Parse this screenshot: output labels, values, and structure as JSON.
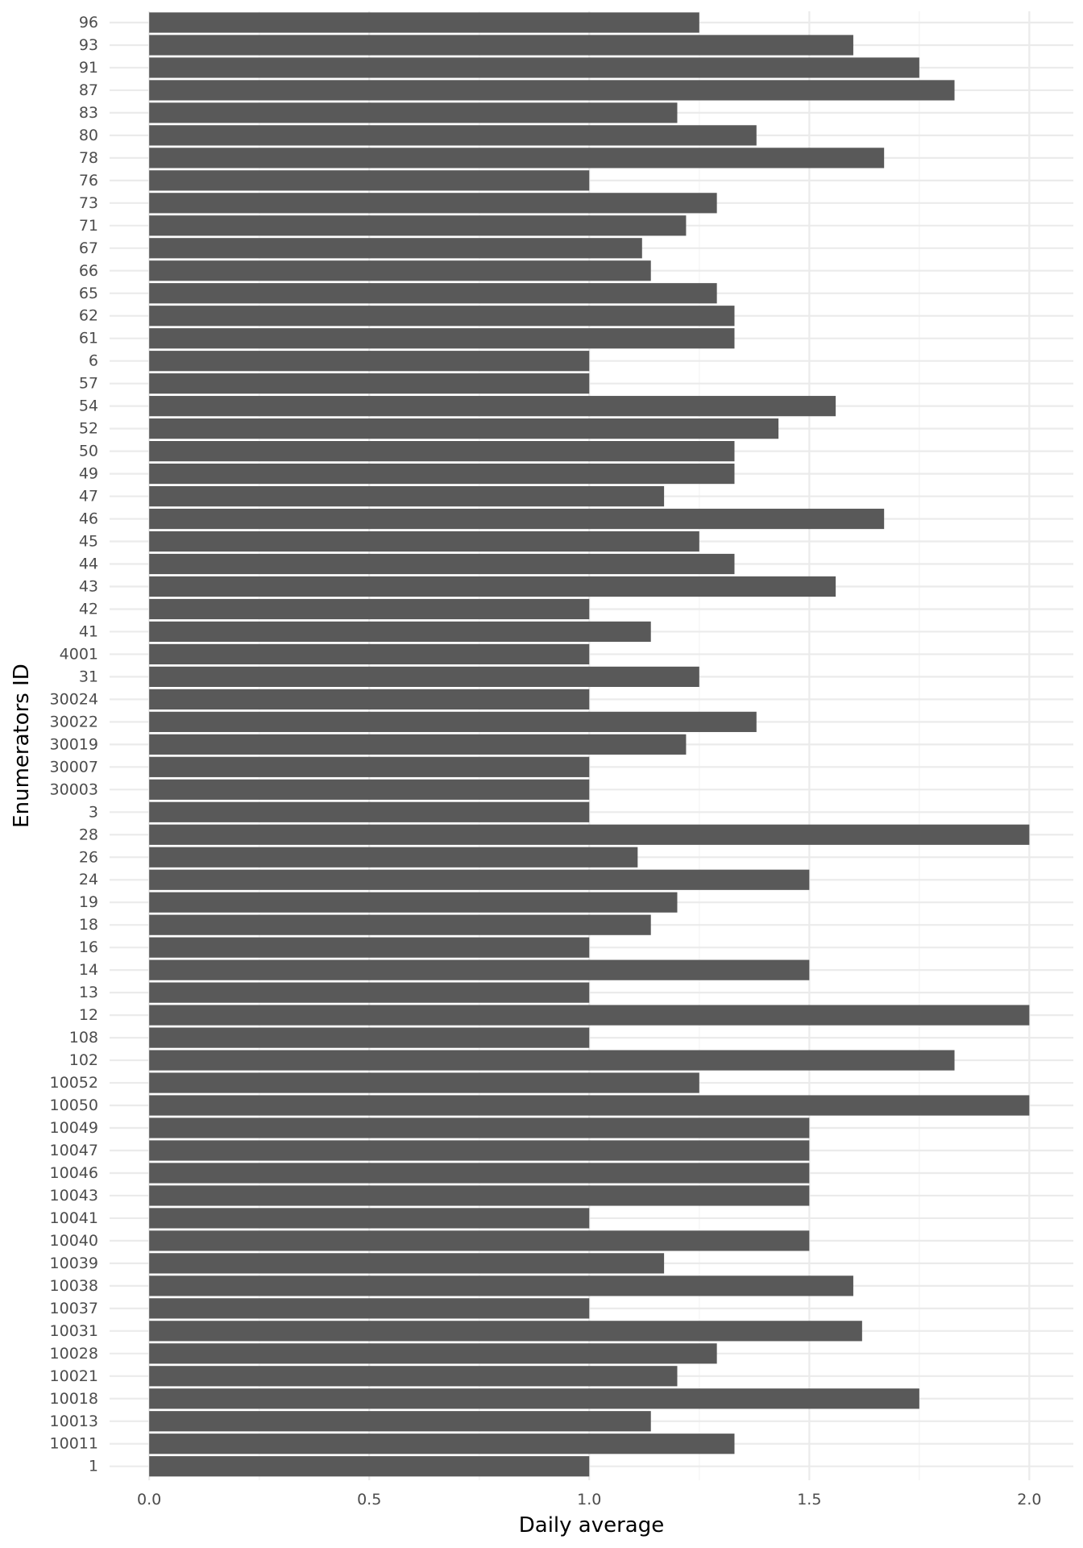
{
  "chart_data": {
    "type": "bar",
    "orientation": "horizontal",
    "xlabel": "Daily average",
    "ylabel": "Enumerators ID",
    "xlim": [
      -0.09,
      2.1
    ],
    "x_ticks": [
      "0.0",
      "0.5",
      "1.0",
      "1.5",
      "2.0"
    ],
    "x_tick_values": [
      0,
      0.5,
      1,
      1.5,
      2
    ],
    "grid": true,
    "legend": "none",
    "colors": {
      "bar": "#595959",
      "grid_major": "#ebebeb",
      "grid_minor": "#f5f5f5"
    },
    "categories": [
      "96",
      "93",
      "91",
      "87",
      "83",
      "80",
      "78",
      "76",
      "73",
      "71",
      "67",
      "66",
      "65",
      "62",
      "61",
      "6",
      "57",
      "54",
      "52",
      "50",
      "49",
      "47",
      "46",
      "45",
      "44",
      "43",
      "42",
      "41",
      "4001",
      "31",
      "30024",
      "30022",
      "30019",
      "30007",
      "30003",
      "3",
      "28",
      "26",
      "24",
      "19",
      "18",
      "16",
      "14",
      "13",
      "12",
      "108",
      "102",
      "10052",
      "10050",
      "10049",
      "10047",
      "10046",
      "10043",
      "10041",
      "10040",
      "10039",
      "10038",
      "10037",
      "10031",
      "10028",
      "10021",
      "10018",
      "10013",
      "10011",
      "1"
    ],
    "values": [
      1.25,
      1.6,
      1.75,
      1.83,
      1.2,
      1.38,
      1.67,
      1.0,
      1.29,
      1.22,
      1.12,
      1.14,
      1.29,
      1.33,
      1.33,
      1.0,
      1.0,
      1.56,
      1.43,
      1.33,
      1.33,
      1.17,
      1.67,
      1.25,
      1.33,
      1.56,
      1.0,
      1.14,
      1.0,
      1.25,
      1.0,
      1.38,
      1.22,
      1.0,
      1.0,
      1.0,
      2.0,
      1.11,
      1.5,
      1.2,
      1.14,
      1.0,
      1.5,
      1.0,
      2.0,
      1.0,
      1.83,
      1.25,
      2.0,
      1.5,
      1.5,
      1.5,
      1.5,
      1.0,
      1.5,
      1.17,
      1.6,
      1.0,
      1.62,
      1.29,
      1.2,
      1.75,
      1.14,
      1.33,
      1.0
    ]
  }
}
